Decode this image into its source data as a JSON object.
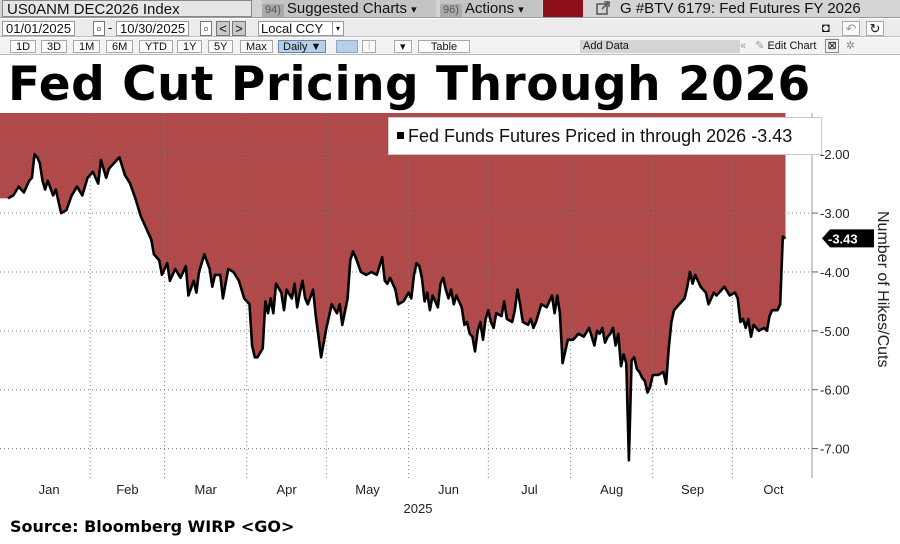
{
  "toolbar": {
    "ticker": "US0ANM DEC2026 Index",
    "suggested_num": "94)",
    "suggested_label": "Suggested Charts",
    "suggested_arrow": "▾",
    "actions_num": "96)",
    "actions_label": "Actions",
    "actions_arrow": "▾",
    "graph_title": "G #BTV 6179: Fed Futures FY 2026",
    "start_date": "01/01/2025",
    "end_date": "10/30/2025",
    "date_sep": "-",
    "currency": "Local CCY",
    "ranges": [
      "1D",
      "3D",
      "1M",
      "6M",
      "YTD",
      "1Y",
      "5Y",
      "Max"
    ],
    "frequency": "Daily",
    "table_label": "Table",
    "add_data_placeholder": "Add Data",
    "edit_chart_label": "Edit Chart"
  },
  "headline": "Fed Cut Pricing Through 2026",
  "source": "Source: Bloomberg WIRP <GO>",
  "legend_label": "Fed Funds Futures Priced in through 2026 -3.43",
  "chart_data": {
    "type": "area",
    "title": "Fed Cut Pricing Through 2026",
    "series_name": "Fed Funds Futures Priced in through 2026",
    "last_value": -3.43,
    "last_value_label": "-3.43",
    "ylabel": "Number of Hikes/Cuts",
    "xlabel": "2025",
    "ylim": [
      -7.5,
      -1.3
    ],
    "yticks": [
      -2.0,
      -3.0,
      -4.0,
      -5.0,
      -6.0,
      -7.0
    ],
    "ytick_labels": [
      "-2.00",
      "-3.00",
      "-4.00",
      "-5.00",
      "-6.00",
      "-7.00"
    ],
    "months": [
      "Jan",
      "Feb",
      "Mar",
      "Apr",
      "May",
      "Jun",
      "Jul",
      "Aug",
      "Sep",
      "Oct"
    ],
    "x_range_days": [
      0,
      303
    ],
    "grid": true,
    "line_color": "#000000",
    "fill_color": "#b04a4a",
    "points": [
      [
        0,
        -2.75
      ],
      [
        2,
        -2.7
      ],
      [
        4,
        -2.55
      ],
      [
        6,
        -2.65
      ],
      [
        8,
        -2.45
      ],
      [
        9,
        -2.4
      ],
      [
        10,
        -2.0
      ],
      [
        11,
        -2.05
      ],
      [
        12,
        -2.15
      ],
      [
        13,
        -2.45
      ],
      [
        14,
        -2.6
      ],
      [
        15,
        -2.45
      ],
      [
        17,
        -2.7
      ],
      [
        18,
        -2.6
      ],
      [
        20,
        -3.0
      ],
      [
        22,
        -2.95
      ],
      [
        24,
        -2.7
      ],
      [
        26,
        -2.55
      ],
      [
        28,
        -2.7
      ],
      [
        30,
        -2.4
      ],
      [
        32,
        -2.3
      ],
      [
        34,
        -2.5
      ],
      [
        35,
        -2.1
      ],
      [
        37,
        -2.4
      ],
      [
        38,
        -2.25
      ],
      [
        40,
        -2.15
      ],
      [
        42,
        -2.05
      ],
      [
        44,
        -2.35
      ],
      [
        46,
        -2.5
      ],
      [
        48,
        -2.75
      ],
      [
        50,
        -3.05
      ],
      [
        52,
        -3.25
      ],
      [
        54,
        -3.45
      ],
      [
        55,
        -3.7
      ],
      [
        57,
        -3.8
      ],
      [
        58,
        -4.05
      ],
      [
        60,
        -3.85
      ],
      [
        61,
        -4.15
      ],
      [
        63,
        -3.95
      ],
      [
        65,
        -4.1
      ],
      [
        67,
        -3.9
      ],
      [
        68,
        -4.4
      ],
      [
        70,
        -4.15
      ],
      [
        71,
        -4.35
      ],
      [
        72,
        -4.0
      ],
      [
        73,
        -3.85
      ],
      [
        74,
        -3.7
      ],
      [
        76,
        -3.95
      ],
      [
        77,
        -4.25
      ],
      [
        78,
        -4.05
      ],
      [
        80,
        -4.05
      ],
      [
        81,
        -4.45
      ],
      [
        83,
        -3.95
      ],
      [
        85,
        -4.0
      ],
      [
        87,
        -4.15
      ],
      [
        89,
        -4.45
      ],
      [
        91,
        -4.55
      ],
      [
        92,
        -5.25
      ],
      [
        93,
        -5.45
      ],
      [
        94,
        -5.45
      ],
      [
        96,
        -5.3
      ],
      [
        97,
        -4.5
      ],
      [
        98,
        -4.7
      ],
      [
        99,
        -4.45
      ],
      [
        100,
        -4.7
      ],
      [
        101,
        -4.2
      ],
      [
        103,
        -4.35
      ],
      [
        104,
        -4.65
      ],
      [
        105,
        -4.3
      ],
      [
        107,
        -4.45
      ],
      [
        108,
        -4.2
      ],
      [
        109,
        -4.6
      ],
      [
        110,
        -4.35
      ],
      [
        111,
        -4.15
      ],
      [
        112,
        -4.45
      ],
      [
        113,
        -4.55
      ],
      [
        115,
        -4.3
      ],
      [
        116,
        -4.75
      ],
      [
        117,
        -5.1
      ],
      [
        118,
        -5.45
      ],
      [
        120,
        -4.95
      ],
      [
        121,
        -4.75
      ],
      [
        122,
        -4.55
      ],
      [
        124,
        -4.7
      ],
      [
        125,
        -4.55
      ],
      [
        126,
        -4.9
      ],
      [
        128,
        -4.45
      ],
      [
        129,
        -3.8
      ],
      [
        130,
        -3.65
      ],
      [
        131,
        -3.75
      ],
      [
        133,
        -4.0
      ],
      [
        135,
        -4.05
      ],
      [
        137,
        -4.0
      ],
      [
        139,
        -4.05
      ],
      [
        140,
        -3.9
      ],
      [
        141,
        -3.75
      ],
      [
        142,
        -4.15
      ],
      [
        143,
        -4.2
      ],
      [
        144,
        -4.1
      ],
      [
        146,
        -4.3
      ],
      [
        147,
        -4.55
      ],
      [
        149,
        -4.5
      ],
      [
        151,
        -4.35
      ],
      [
        152,
        -4.45
      ],
      [
        153,
        -4.05
      ],
      [
        154,
        -3.85
      ],
      [
        155,
        -3.9
      ],
      [
        156,
        -4.1
      ],
      [
        157,
        -4.5
      ],
      [
        158,
        -4.35
      ],
      [
        159,
        -4.65
      ],
      [
        160,
        -4.4
      ],
      [
        162,
        -4.6
      ],
      [
        163,
        -4.2
      ],
      [
        164,
        -4.1
      ],
      [
        165,
        -4.3
      ],
      [
        166,
        -4.45
      ],
      [
        167,
        -4.3
      ],
      [
        168,
        -4.55
      ],
      [
        169,
        -4.4
      ],
      [
        171,
        -4.6
      ],
      [
        172,
        -4.9
      ],
      [
        173,
        -4.85
      ],
      [
        174,
        -5.05
      ],
      [
        175,
        -5.1
      ],
      [
        176,
        -5.35
      ],
      [
        177,
        -5.0
      ],
      [
        178,
        -4.85
      ],
      [
        179,
        -5.15
      ],
      [
        180,
        -4.8
      ],
      [
        181,
        -4.65
      ],
      [
        182,
        -4.85
      ],
      [
        183,
        -4.95
      ],
      [
        184,
        -4.7
      ],
      [
        186,
        -4.75
      ],
      [
        187,
        -4.5
      ],
      [
        188,
        -4.8
      ],
      [
        190,
        -4.85
      ],
      [
        191,
        -4.65
      ],
      [
        192,
        -4.3
      ],
      [
        193,
        -4.55
      ],
      [
        194,
        -4.85
      ],
      [
        196,
        -4.9
      ],
      [
        197,
        -4.8
      ],
      [
        198,
        -4.95
      ],
      [
        199,
        -4.85
      ],
      [
        201,
        -4.55
      ],
      [
        203,
        -4.6
      ],
      [
        204,
        -4.5
      ],
      [
        205,
        -4.4
      ],
      [
        206,
        -4.7
      ],
      [
        207,
        -4.4
      ],
      [
        208,
        -4.7
      ],
      [
        209,
        -5.55
      ],
      [
        210,
        -5.35
      ],
      [
        211,
        -5.15
      ],
      [
        213,
        -5.15
      ],
      [
        215,
        -5.05
      ],
      [
        217,
        -5.1
      ],
      [
        219,
        -4.95
      ],
      [
        221,
        -5.25
      ],
      [
        222,
        -5.0
      ],
      [
        223,
        -5.05
      ],
      [
        224,
        -4.95
      ],
      [
        225,
        -5.2
      ],
      [
        226,
        -5.1
      ],
      [
        227,
        -5.05
      ],
      [
        228,
        -4.95
      ],
      [
        229,
        -5.25
      ],
      [
        230,
        -5.05
      ],
      [
        231,
        -5.6
      ],
      [
        232,
        -5.4
      ],
      [
        233,
        -5.55
      ],
      [
        234,
        -7.2
      ],
      [
        235,
        -5.5
      ],
      [
        236,
        -5.45
      ],
      [
        237,
        -5.65
      ],
      [
        238,
        -5.7
      ],
      [
        239,
        -5.8
      ],
      [
        240,
        -5.85
      ],
      [
        241,
        -6.05
      ],
      [
        242,
        -5.95
      ],
      [
        243,
        -5.75
      ],
      [
        245,
        -5.75
      ],
      [
        247,
        -5.7
      ],
      [
        248,
        -5.9
      ],
      [
        249,
        -5.3
      ],
      [
        250,
        -4.85
      ],
      [
        251,
        -4.65
      ],
      [
        253,
        -4.55
      ],
      [
        255,
        -4.45
      ],
      [
        256,
        -4.25
      ],
      [
        257,
        -4.0
      ],
      [
        258,
        -4.2
      ],
      [
        259,
        -4.05
      ],
      [
        261,
        -4.25
      ],
      [
        263,
        -4.35
      ],
      [
        264,
        -4.55
      ],
      [
        265,
        -4.45
      ],
      [
        266,
        -4.35
      ],
      [
        267,
        -4.4
      ],
      [
        268,
        -4.35
      ],
      [
        270,
        -4.25
      ],
      [
        272,
        -4.4
      ],
      [
        274,
        -4.35
      ],
      [
        275,
        -4.45
      ],
      [
        276,
        -4.85
      ],
      [
        277,
        -4.8
      ],
      [
        278,
        -4.95
      ],
      [
        279,
        -4.8
      ],
      [
        280,
        -5.1
      ],
      [
        281,
        -4.9
      ],
      [
        283,
        -5.0
      ],
      [
        285,
        -4.95
      ],
      [
        286,
        -5.0
      ],
      [
        287,
        -4.75
      ],
      [
        288,
        -4.65
      ],
      [
        290,
        -4.65
      ],
      [
        291,
        -4.55
      ],
      [
        292,
        -3.4
      ],
      [
        293,
        -3.43
      ]
    ]
  }
}
